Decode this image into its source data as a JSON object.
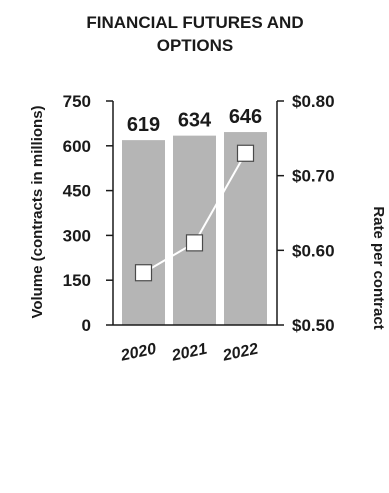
{
  "chart_data": {
    "type": "bar",
    "title_lines": [
      "FINANCIAL FUTURES AND",
      "OPTIONS"
    ],
    "categories": [
      "2020",
      "2021",
      "2022"
    ],
    "series": [
      {
        "type": "bar",
        "axis": "left",
        "values": [
          619,
          634,
          646
        ],
        "value_labels": [
          "619",
          "634",
          "646"
        ]
      },
      {
        "type": "line",
        "axis": "right",
        "values": [
          0.57,
          0.61,
          0.73
        ]
      }
    ],
    "ylabel_left": "Volume (contracts in millions)",
    "ylabel_right": "Rate per contract",
    "ylim_left": [
      0,
      750
    ],
    "ylim_right": [
      0.5,
      0.8
    ],
    "left_ticks": [
      "0",
      "150",
      "300",
      "450",
      "600",
      "750"
    ],
    "right_ticks": [
      "$0.50",
      "$0.60",
      "$0.70",
      "$0.80"
    ],
    "grid": false,
    "legend": "none",
    "colors": {
      "bar": "#b5b5b5",
      "line": "#ffffff",
      "marker_fill": "#ffffff",
      "marker_stroke": "#4a4a4a",
      "axis": "#1a1a1a",
      "text": "#1a1a1a"
    }
  }
}
